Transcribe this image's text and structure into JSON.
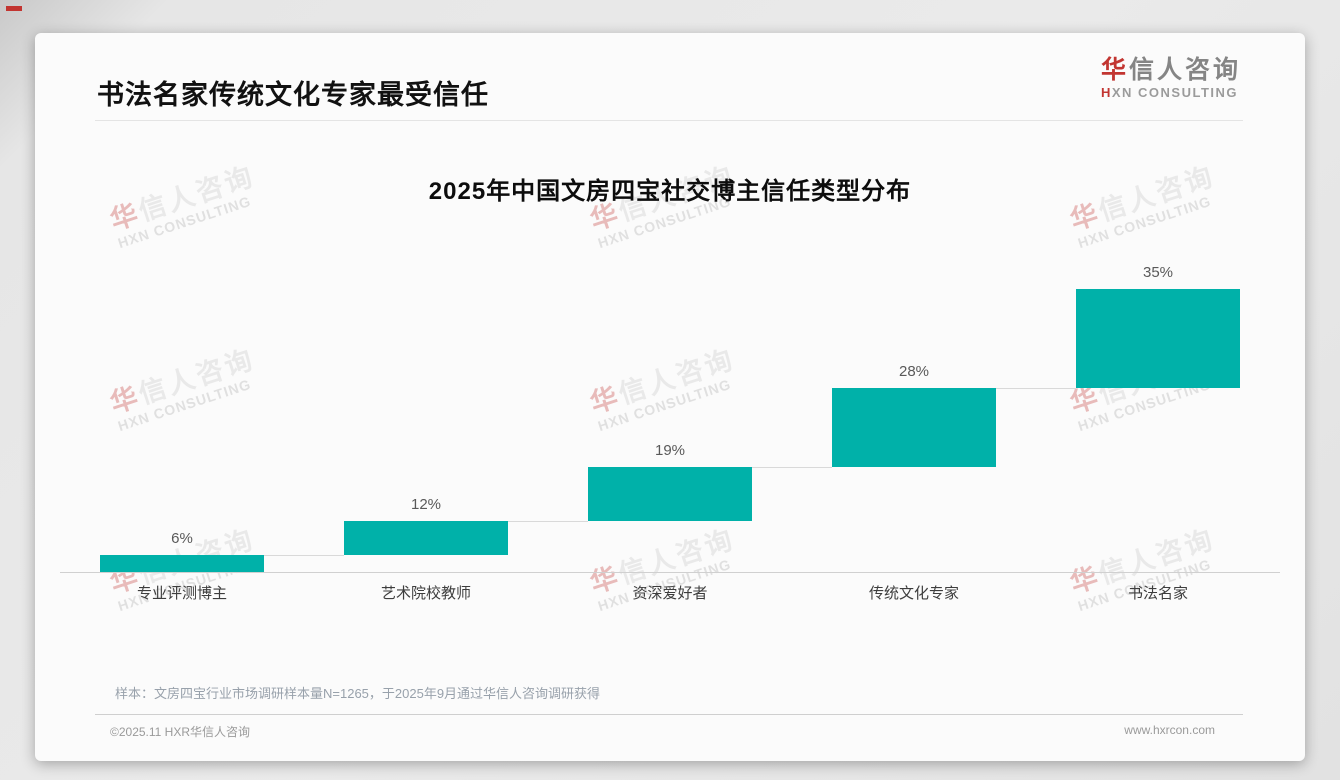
{
  "page": {
    "title": "书法名家传统文化专家最受信任",
    "logo": {
      "zh_first": "华",
      "zh_rest": "信人咨询",
      "en_first": "H",
      "en_rest": "XN CONSULTING"
    },
    "watermark": {
      "zh_first": "华",
      "zh_rest": "信人咨询",
      "en": "HXN CONSULTING"
    },
    "note": "样本：文房四宝行业市场调研样本量N=1265，于2025年9月通过华信人咨询调研获得",
    "footer": {
      "copyright": "©2025.11 HXR华信人咨询",
      "website": "www.hxrcon.com"
    }
  },
  "chart_data": {
    "type": "bar",
    "subtype": "waterfall-step",
    "title": "2025年中国文房四宝社交博主信任类型分布",
    "categories": [
      "专业评测博主",
      "艺术院校教师",
      "资深爱好者",
      "传统文化专家",
      "书法名家"
    ],
    "values": [
      6,
      12,
      19,
      28,
      35
    ],
    "value_labels": [
      "6%",
      "12%",
      "19%",
      "28%",
      "35%"
    ],
    "cumulative_start": [
      0,
      6,
      18,
      37,
      65
    ],
    "unit": "%",
    "ylim": [
      0,
      100
    ],
    "grid": false,
    "legend": "none",
    "bar_color": "#00b1a9",
    "connector_color": "#d9d9d9",
    "baseline_color": "#d0d0d0",
    "accent_red": "#c23531"
  }
}
